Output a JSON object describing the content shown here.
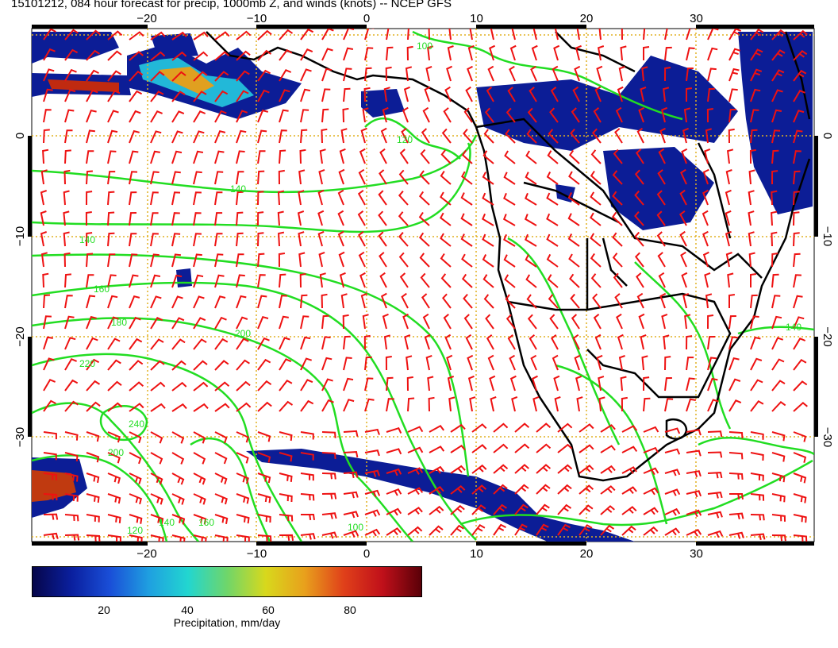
{
  "title": "15101212, 084 hour forecast for precip, 1000mb Z, and winds (knots) -- NCEP GFS",
  "map": {
    "lon_ticks": [
      -20,
      -10,
      0,
      10,
      20,
      30
    ],
    "lat_ticks": [
      0,
      -10,
      -20,
      -30
    ],
    "lon_range": [
      -30,
      40
    ],
    "lat_range": [
      -40,
      10
    ],
    "grid": true,
    "contour_labels": [
      "100",
      "120",
      "140",
      "140",
      "160",
      "180",
      "200",
      "220",
      "240",
      "200",
      "160",
      "140",
      "120",
      "100",
      "140"
    ],
    "colors": {
      "contour": "#22dd22",
      "wind_barb": "#ee1111",
      "grid": "#e0b020",
      "coastline": "#000000",
      "precip_low": "#0a1f9e"
    }
  },
  "colorbar": {
    "ticks": [
      "20",
      "40",
      "60",
      "80"
    ],
    "title": "Precipitation, mm/day"
  }
}
